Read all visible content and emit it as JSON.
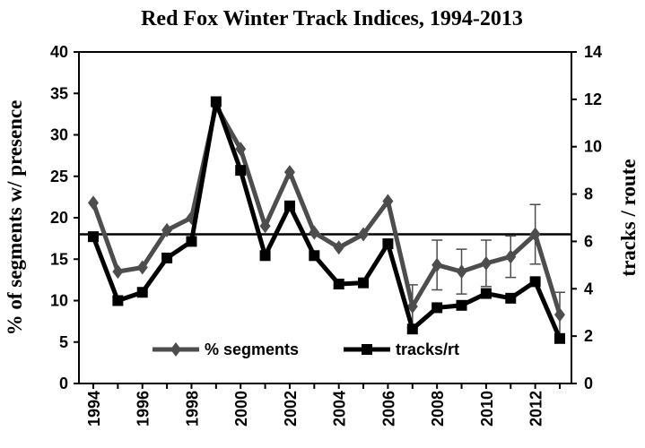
{
  "chart_data": {
    "type": "line",
    "title": "Red Fox Winter Track Indices, 1994-2013",
    "y_label": "% of segments w/ presence",
    "y2_label": "tracks / route",
    "categories": [
      "1994",
      null,
      "1996",
      null,
      "1998",
      null,
      "2000",
      null,
      "2002",
      null,
      "2004",
      null,
      "2006",
      null,
      "2008",
      null,
      "2010",
      null,
      "2012",
      null
    ],
    "series": [
      {
        "name": "% segments",
        "color": "#4d4d4d",
        "marker": "diamond",
        "values": [
          21.8,
          13.5,
          14,
          18.5,
          20,
          33.5,
          28.3,
          19,
          25.5,
          18.2,
          16.4,
          18,
          22,
          9.3,
          14.3,
          13.5,
          14.5,
          15.3,
          18,
          8.3
        ],
        "errors": [
          null,
          null,
          null,
          null,
          null,
          null,
          null,
          null,
          null,
          null,
          null,
          null,
          null,
          2.6,
          3,
          2.7,
          2.8,
          2.5,
          3.6,
          2.7
        ]
      },
      {
        "name": "tracks/rt",
        "color": "#000000",
        "marker": "square",
        "axis": "y2",
        "values": [
          6.2,
          3.5,
          3.85,
          5.3,
          6,
          11.9,
          9,
          5.4,
          7.5,
          5.4,
          4.2,
          4.25,
          5.9,
          2.3,
          3.2,
          3.3,
          3.8,
          3.6,
          4.3,
          1.9
        ]
      }
    ],
    "reference_line": 18,
    "ylim": [
      0,
      40
    ],
    "yticks": [
      0,
      5,
      10,
      15,
      20,
      25,
      30,
      35,
      40
    ],
    "y2lim": [
      0,
      14
    ],
    "y2ticks": [
      0,
      2,
      4,
      6,
      8,
      10,
      12,
      14
    ],
    "legend": "bottom"
  }
}
